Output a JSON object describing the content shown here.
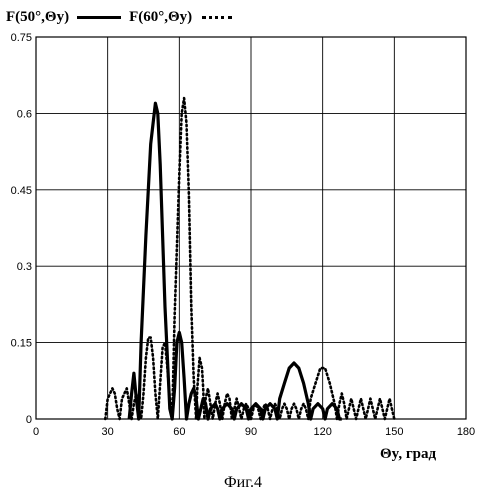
{
  "chart_data": {
    "type": "line",
    "legend": [
      {
        "label": "F(50°,Θy)",
        "style": "solid"
      },
      {
        "label": "F(60°,Θy)",
        "style": "dotted"
      }
    ],
    "legend_placement": "top-left",
    "x_ticks": [
      "0",
      "30",
      "60",
      "90",
      "120",
      "150",
      "180"
    ],
    "y_ticks": [
      "0",
      "0.15",
      "0.3",
      "0.45",
      "0.6",
      "0.75"
    ],
    "xlim": [
      0,
      180
    ],
    "ylim": [
      0,
      0.75
    ],
    "xlabel": "Θy, град",
    "ylabel": "",
    "grid": true,
    "caption": "Фиг.4",
    "series": [
      {
        "name": "F(50°,Θy)",
        "style": "solid",
        "points": [
          [
            39,
            0
          ],
          [
            40,
            0.05
          ],
          [
            41,
            0.09
          ],
          [
            42,
            0.04
          ],
          [
            43,
            0
          ],
          [
            44,
            0.15
          ],
          [
            46,
            0.36
          ],
          [
            48,
            0.54
          ],
          [
            50,
            0.62
          ],
          [
            51,
            0.6
          ],
          [
            52,
            0.5
          ],
          [
            54,
            0.22
          ],
          [
            56,
            0.02
          ],
          [
            57,
            0
          ],
          [
            58,
            0.06
          ],
          [
            59,
            0.15
          ],
          [
            60,
            0.17
          ],
          [
            61,
            0.15
          ],
          [
            62,
            0.08
          ],
          [
            63,
            0
          ],
          [
            64,
            0.03
          ],
          [
            65,
            0.05
          ],
          [
            66,
            0.06
          ],
          [
            67,
            0.04
          ],
          [
            68,
            0
          ],
          [
            69,
            0.02
          ],
          [
            70,
            0.04
          ],
          [
            71,
            0.03
          ],
          [
            72,
            0
          ],
          [
            73,
            0.02
          ],
          [
            75,
            0.03
          ],
          [
            76,
            0.02
          ],
          [
            77,
            0
          ],
          [
            78,
            0.02
          ],
          [
            80,
            0.03
          ],
          [
            82,
            0.02
          ],
          [
            83,
            0
          ],
          [
            84,
            0.02
          ],
          [
            86,
            0.03
          ],
          [
            88,
            0.02
          ],
          [
            89,
            0
          ],
          [
            90,
            0.02
          ],
          [
            92,
            0.03
          ],
          [
            94,
            0.02
          ],
          [
            95,
            0
          ],
          [
            96,
            0.02
          ],
          [
            98,
            0.03
          ],
          [
            100,
            0.02
          ],
          [
            101,
            0
          ],
          [
            102,
            0.04
          ],
          [
            104,
            0.07
          ],
          [
            106,
            0.1
          ],
          [
            108,
            0.11
          ],
          [
            110,
            0.1
          ],
          [
            112,
            0.07
          ],
          [
            114,
            0.03
          ],
          [
            115,
            0
          ],
          [
            116,
            0.02
          ],
          [
            118,
            0.03
          ],
          [
            120,
            0.02
          ],
          [
            121,
            0
          ],
          [
            122,
            0.02
          ],
          [
            124,
            0.03
          ],
          [
            126,
            0.02
          ],
          [
            127,
            0
          ],
          [
            128,
            0
          ]
        ]
      },
      {
        "name": "F(60°,Θy)",
        "style": "dotted",
        "points": [
          [
            29,
            0
          ],
          [
            30,
            0.04
          ],
          [
            32,
            0.06
          ],
          [
            33,
            0.05
          ],
          [
            34,
            0.02
          ],
          [
            35,
            0
          ],
          [
            36,
            0.04
          ],
          [
            38,
            0.06
          ],
          [
            39,
            0.03
          ],
          [
            40,
            0
          ],
          [
            41,
            0.03
          ],
          [
            42,
            0.05
          ],
          [
            43,
            0.02
          ],
          [
            44,
            0
          ],
          [
            45,
            0.05
          ],
          [
            46,
            0.12
          ],
          [
            47,
            0.16
          ],
          [
            48,
            0.16
          ],
          [
            49,
            0.12
          ],
          [
            50,
            0.05
          ],
          [
            51,
            0
          ],
          [
            52,
            0.07
          ],
          [
            53,
            0.14
          ],
          [
            54,
            0.15
          ],
          [
            55,
            0.1
          ],
          [
            56,
            0.04
          ],
          [
            57,
            0
          ],
          [
            58,
            0.2
          ],
          [
            60,
            0.48
          ],
          [
            61,
            0.6
          ],
          [
            62,
            0.63
          ],
          [
            63,
            0.58
          ],
          [
            64,
            0.44
          ],
          [
            65,
            0.22
          ],
          [
            66,
            0.08
          ],
          [
            67,
            0
          ],
          [
            67.5,
            0.06
          ],
          [
            68.5,
            0.12
          ],
          [
            69.5,
            0.1
          ],
          [
            70,
            0.06
          ],
          [
            70.5,
            0
          ],
          [
            71,
            0.04
          ],
          [
            72,
            0.06
          ],
          [
            73,
            0.03
          ],
          [
            74,
            0
          ],
          [
            75,
            0.03
          ],
          [
            76,
            0.05
          ],
          [
            77,
            0.03
          ],
          [
            78,
            0
          ],
          [
            79,
            0.03
          ],
          [
            80,
            0.05
          ],
          [
            81,
            0.04
          ],
          [
            82,
            0
          ],
          [
            83,
            0.02
          ],
          [
            84,
            0.04
          ],
          [
            85,
            0.02
          ],
          [
            86,
            0
          ],
          [
            87,
            0.02
          ],
          [
            88,
            0.03
          ],
          [
            89,
            0.02
          ],
          [
            90,
            0
          ],
          [
            91,
            0.02
          ],
          [
            92,
            0.03
          ],
          [
            93,
            0.02
          ],
          [
            94,
            0
          ],
          [
            95,
            0.02
          ],
          [
            96,
            0.03
          ],
          [
            97,
            0.02
          ],
          [
            98,
            0
          ],
          [
            99,
            0.02
          ],
          [
            100,
            0.03
          ],
          [
            101,
            0.02
          ],
          [
            102,
            0
          ],
          [
            103,
            0.02
          ],
          [
            104,
            0.03
          ],
          [
            105,
            0.02
          ],
          [
            106,
            0
          ],
          [
            107,
            0.02
          ],
          [
            108,
            0.03
          ],
          [
            109,
            0.02
          ],
          [
            110,
            0
          ],
          [
            111,
            0.02
          ],
          [
            112,
            0.03
          ],
          [
            113,
            0.02
          ],
          [
            114,
            0
          ],
          [
            115,
            0.04
          ],
          [
            117,
            0.07
          ],
          [
            119,
            0.1
          ],
          [
            121,
            0.1
          ],
          [
            123,
            0.07
          ],
          [
            125,
            0.03
          ],
          [
            126,
            0
          ],
          [
            127,
            0.03
          ],
          [
            128,
            0.05
          ],
          [
            129,
            0.03
          ],
          [
            130,
            0
          ],
          [
            131,
            0.02
          ],
          [
            132,
            0.04
          ],
          [
            133,
            0.02
          ],
          [
            134,
            0
          ],
          [
            135,
            0.02
          ],
          [
            136,
            0.04
          ],
          [
            137,
            0.02
          ],
          [
            138,
            0
          ],
          [
            139,
            0.02
          ],
          [
            140,
            0.04
          ],
          [
            141,
            0.02
          ],
          [
            142,
            0
          ],
          [
            143,
            0.02
          ],
          [
            144,
            0.04
          ],
          [
            145,
            0.02
          ],
          [
            146,
            0
          ],
          [
            147,
            0.02
          ],
          [
            148,
            0.04
          ],
          [
            149,
            0.02
          ],
          [
            150,
            0
          ]
        ]
      }
    ]
  }
}
